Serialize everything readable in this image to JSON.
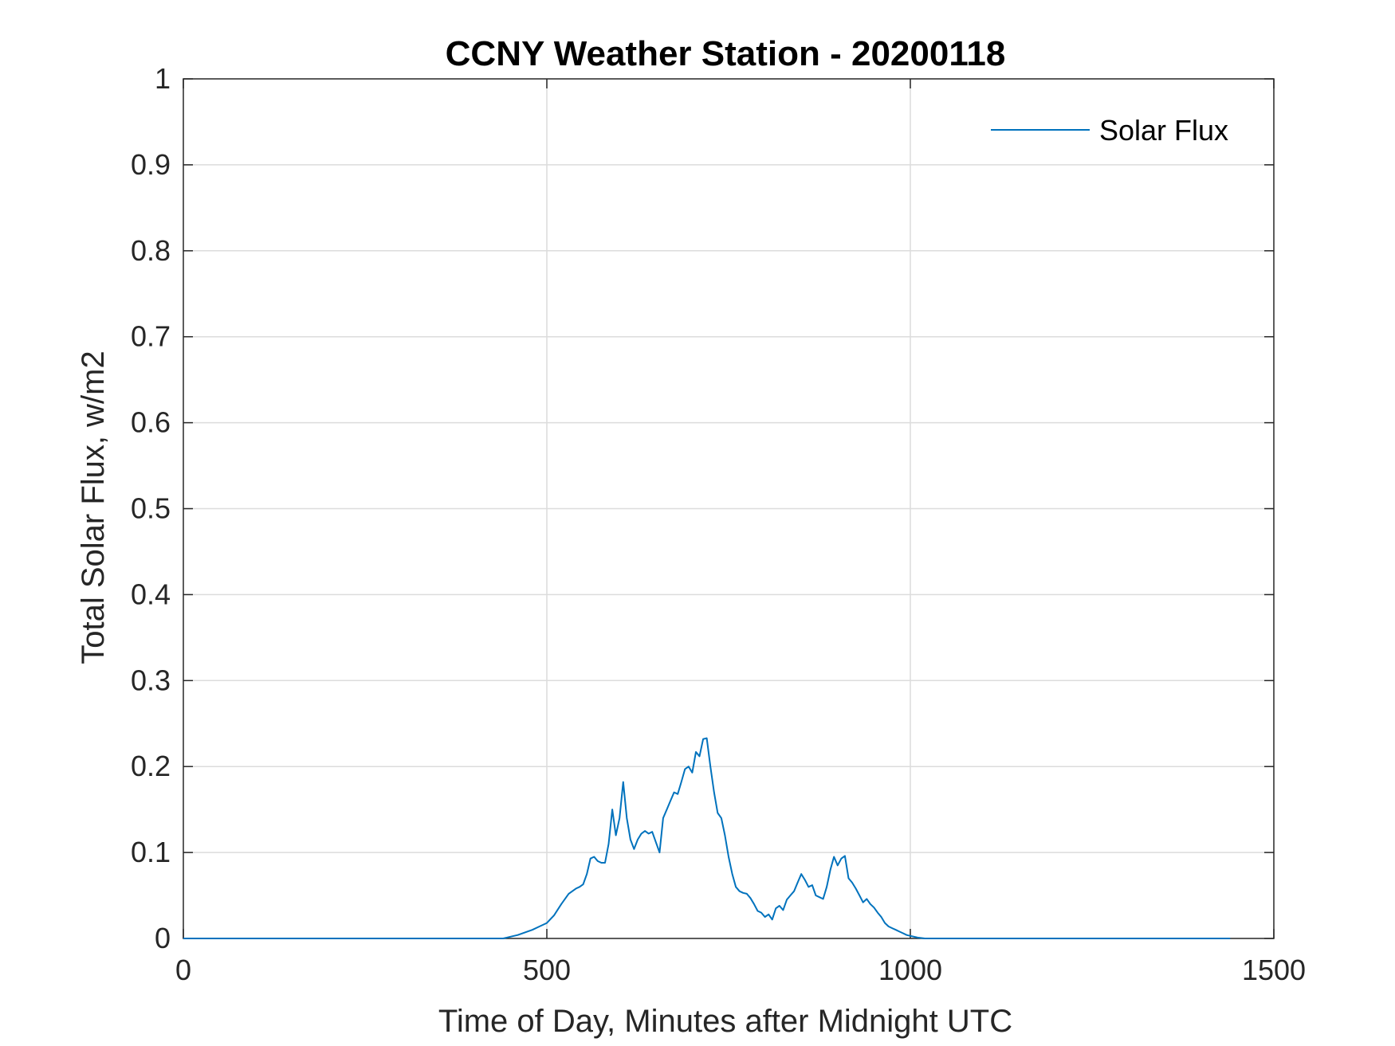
{
  "chart_data": {
    "type": "line",
    "title": "CCNY Weather Station - 20200118",
    "xlabel": "Time of Day, Minutes after Midnight UTC",
    "ylabel": "Total Solar Flux, w/m2",
    "xlim": [
      0,
      1500
    ],
    "ylim": [
      0,
      1
    ],
    "xticks": [
      0,
      500,
      1000,
      1500
    ],
    "xtick_labels": [
      "0",
      "500",
      "1000",
      "1500"
    ],
    "yticks": [
      0,
      0.1,
      0.2,
      0.3,
      0.4,
      0.5,
      0.6,
      0.7,
      0.8,
      0.9,
      1
    ],
    "ytick_labels": [
      "0",
      "0.1",
      "0.2",
      "0.3",
      "0.4",
      "0.5",
      "0.6",
      "0.7",
      "0.8",
      "0.9",
      "1"
    ],
    "grid": true,
    "legend": {
      "position": "top-right",
      "entries": [
        "Solar Flux"
      ]
    },
    "series": [
      {
        "name": "Solar Flux",
        "color": "#0072BD",
        "x": [
          0,
          100,
          200,
          300,
          400,
          440,
          450,
          460,
          470,
          480,
          490,
          500,
          510,
          520,
          530,
          540,
          545,
          550,
          555,
          560,
          565,
          570,
          575,
          580,
          585,
          590,
          595,
          600,
          605,
          610,
          615,
          620,
          625,
          630,
          635,
          640,
          645,
          650,
          655,
          660,
          665,
          670,
          675,
          680,
          685,
          690,
          695,
          700,
          705,
          710,
          715,
          720,
          725,
          730,
          735,
          740,
          745,
          750,
          755,
          760,
          765,
          770,
          775,
          780,
          785,
          790,
          795,
          800,
          805,
          810,
          815,
          820,
          825,
          830,
          835,
          840,
          845,
          850,
          855,
          860,
          865,
          870,
          875,
          880,
          885,
          890,
          895,
          900,
          905,
          910,
          915,
          920,
          925,
          930,
          935,
          940,
          945,
          950,
          955,
          960,
          965,
          970,
          975,
          980,
          985,
          990,
          995,
          1000,
          1010,
          1020,
          1030,
          1050,
          1100,
          1200,
          1300,
          1400,
          1440
        ],
        "y": [
          0,
          0,
          0,
          0,
          0,
          0,
          0.002,
          0.004,
          0.007,
          0.01,
          0.014,
          0.018,
          0.027,
          0.04,
          0.052,
          0.058,
          0.06,
          0.063,
          0.075,
          0.093,
          0.095,
          0.09,
          0.088,
          0.088,
          0.11,
          0.15,
          0.12,
          0.14,
          0.182,
          0.14,
          0.115,
          0.104,
          0.115,
          0.122,
          0.125,
          0.122,
          0.124,
          0.112,
          0.1,
          0.14,
          0.15,
          0.16,
          0.17,
          0.168,
          0.182,
          0.197,
          0.2,
          0.193,
          0.217,
          0.212,
          0.232,
          0.233,
          0.2,
          0.17,
          0.146,
          0.14,
          0.12,
          0.095,
          0.075,
          0.06,
          0.055,
          0.053,
          0.052,
          0.047,
          0.04,
          0.032,
          0.03,
          0.025,
          0.028,
          0.022,
          0.035,
          0.038,
          0.033,
          0.045,
          0.05,
          0.055,
          0.065,
          0.075,
          0.068,
          0.06,
          0.062,
          0.05,
          0.048,
          0.046,
          0.06,
          0.08,
          0.095,
          0.085,
          0.093,
          0.096,
          0.07,
          0.065,
          0.058,
          0.05,
          0.042,
          0.046,
          0.04,
          0.036,
          0.03,
          0.025,
          0.018,
          0.014,
          0.012,
          0.01,
          0.008,
          0.006,
          0.004,
          0.003,
          0.001,
          0,
          0,
          0,
          0,
          0,
          0,
          0,
          0
        ]
      }
    ]
  }
}
